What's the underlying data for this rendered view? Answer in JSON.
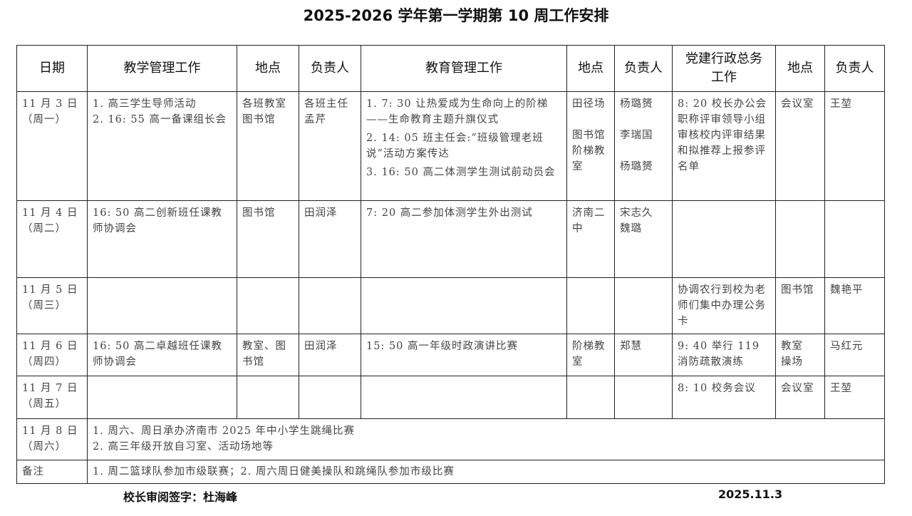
{
  "title": "2025-2026 学年第一学期第 10 周工作安排",
  "headers": [
    "日期",
    "教学管理工作",
    "地点",
    "负责人",
    "教育管理工作",
    "地点",
    "负责人",
    "党建行政总务\n工作",
    "地点",
    "负责人"
  ],
  "rows": [
    {
      "date": "11 月 3 日\n（周一）",
      "teach": [
        "1. 高三学生导师活动",
        "2. 16: 55 高一备课组长会"
      ],
      "teach_loc": "各班教室\n图书馆",
      "teach_owner": "各班主任\n孟芹",
      "edu": [
        "1. 7: 30 让热爱成为生命向上的阶梯——生命教育主题升旗仪式",
        "2. 14: 05 班主任会:“班级管理老班说”活动方案传达",
        "3. 16: 50 高二体测学生测试前动员会"
      ],
      "edu_loc": "田径场\n\n图书馆\n阶梯教室",
      "edu_owner": "杨璐赟\n\n李瑞国\n\n杨璐赟",
      "admin": "8: 20 校长办公会\n职称评审领导小组审核校内评审结果和拟推荐上报参评名单",
      "admin_loc": "会议室",
      "admin_owner": "王堃"
    },
    {
      "date": "11 月 4 日\n（周二）",
      "teach": [
        "16: 50 高二创新班任课教师协调会"
      ],
      "teach_loc": "图书馆",
      "teach_owner": "田润泽",
      "edu": [
        "7: 20 高二参加体测学生外出测试"
      ],
      "edu_loc": "济南二中",
      "edu_owner": "宋志久\n魏璐",
      "admin": "",
      "admin_loc": "",
      "admin_owner": ""
    },
    {
      "date": "11 月 5 日\n（周三）",
      "teach": [],
      "teach_loc": "",
      "teach_owner": "",
      "edu": [],
      "edu_loc": "",
      "edu_owner": "",
      "admin": "协调农行到校为老师们集中办理公务卡",
      "admin_loc": "图书馆",
      "admin_owner": "魏艳平"
    },
    {
      "date": "11 月 6 日\n（周四）",
      "teach": [
        "16: 50 高二卓越班任课教师协调会"
      ],
      "teach_loc": "教室、图书馆",
      "teach_owner": "田润泽",
      "edu": [
        "15: 50 高一年级时政演讲比赛"
      ],
      "edu_loc": "阶梯教室",
      "edu_owner": "郑慧",
      "admin": "9: 40 举行 119 消防疏散演练",
      "admin_loc": "教室\n操场",
      "admin_owner": "马红元"
    },
    {
      "date": "11 月 7 日\n（周五）",
      "teach": [],
      "teach_loc": "",
      "teach_owner": "",
      "edu": [],
      "edu_loc": "",
      "edu_owner": "",
      "admin": "8: 10 校务会议",
      "admin_loc": "会议室",
      "admin_owner": "王堃"
    }
  ],
  "saturday": {
    "date": "11 月 8 日\n（周六）",
    "text": "1. 周六、周日承办济南市 2025 年中小学生跳绳比赛\n2. 高三年级开放自习室、活动场地等"
  },
  "remarks": {
    "label": "备注",
    "text": "1. 周二篮球队参加市级联赛；2. 周六周日健美操队和跳绳队参加市级比赛"
  },
  "footer": {
    "signature": "校长审阅签字：杜海峰",
    "date": "2025.11.3"
  }
}
